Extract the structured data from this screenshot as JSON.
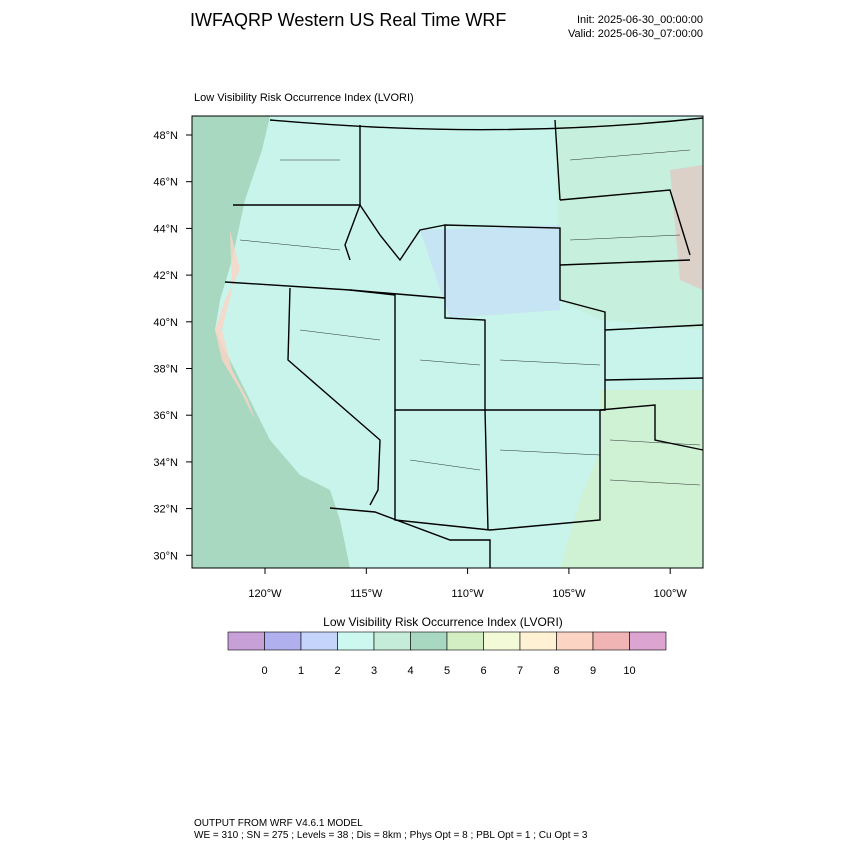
{
  "header": {
    "title": "IWFAQRP Western US Real Time WRF",
    "init": "Init: 2025-06-30_00:00:00",
    "valid": "Valid: 2025-06-30_07:00:00"
  },
  "map": {
    "title": "Low Visibility Risk Occurrence Index   (LVORI)",
    "lat_labels": [
      "48°N",
      "46°N",
      "44°N",
      "42°N",
      "40°N",
      "38°N",
      "36°N",
      "34°N",
      "32°N",
      "30°N"
    ],
    "lon_labels": [
      "120°W",
      "115°W",
      "110°W",
      "105°W",
      "100°W"
    ]
  },
  "colorbar": {
    "title": "Low Visibility Risk Occurrence Index  (LVORI)",
    "colors": [
      "#c8a0d8",
      "#b0b0ee",
      "#c4d4fa",
      "#ccf8f0",
      "#c4ecd8",
      "#a8d8c0",
      "#d4eec4",
      "#f2fad8",
      "#fff2d4",
      "#fcd4c4",
      "#f0b4b4",
      "#dca4d0"
    ],
    "ticks": [
      0,
      1,
      2,
      3,
      4,
      5,
      6,
      7,
      8,
      9,
      10
    ]
  },
  "footer": {
    "line1": "OUTPUT FROM WRF V4.6.1 MODEL",
    "line2": "WE = 310 ; SN = 275 ; Levels = 38 ; Dis = 8km ; Phys Opt = 8 ; PBL Opt = 1 ; Cu Opt = 3"
  }
}
